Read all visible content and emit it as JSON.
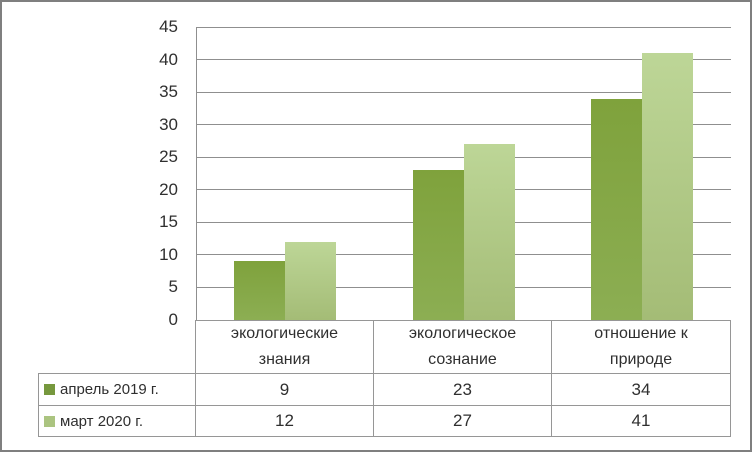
{
  "chart_data": {
    "type": "bar",
    "title": "",
    "xlabel": "",
    "ylabel": "",
    "categories": [
      "экологические знания",
      "экологическое сознание",
      "отношение к природе"
    ],
    "series": [
      {
        "name": "апрель 2019 г.",
        "values": [
          9,
          23,
          34
        ],
        "bar_color_top": "#7fa23c",
        "bar_color_bottom": "#8cae53",
        "legend_color": "#76983d"
      },
      {
        "name": "март 2020 г.",
        "values": [
          12,
          27,
          41
        ],
        "bar_color_top": "#bdd697",
        "bar_color_bottom": "#a4bc76",
        "legend_color": "#abc480"
      }
    ],
    "ylim": [
      0,
      45
    ],
    "yticks": [
      0,
      5,
      10,
      15,
      20,
      25,
      30,
      35,
      40,
      45
    ],
    "grid": true,
    "legend_position": "data-table-left",
    "colors": {
      "gridline": "#8f8f8f",
      "table_border": "#969696",
      "text": "#2f2f2f",
      "frame_border": "#7f7f7f"
    }
  }
}
